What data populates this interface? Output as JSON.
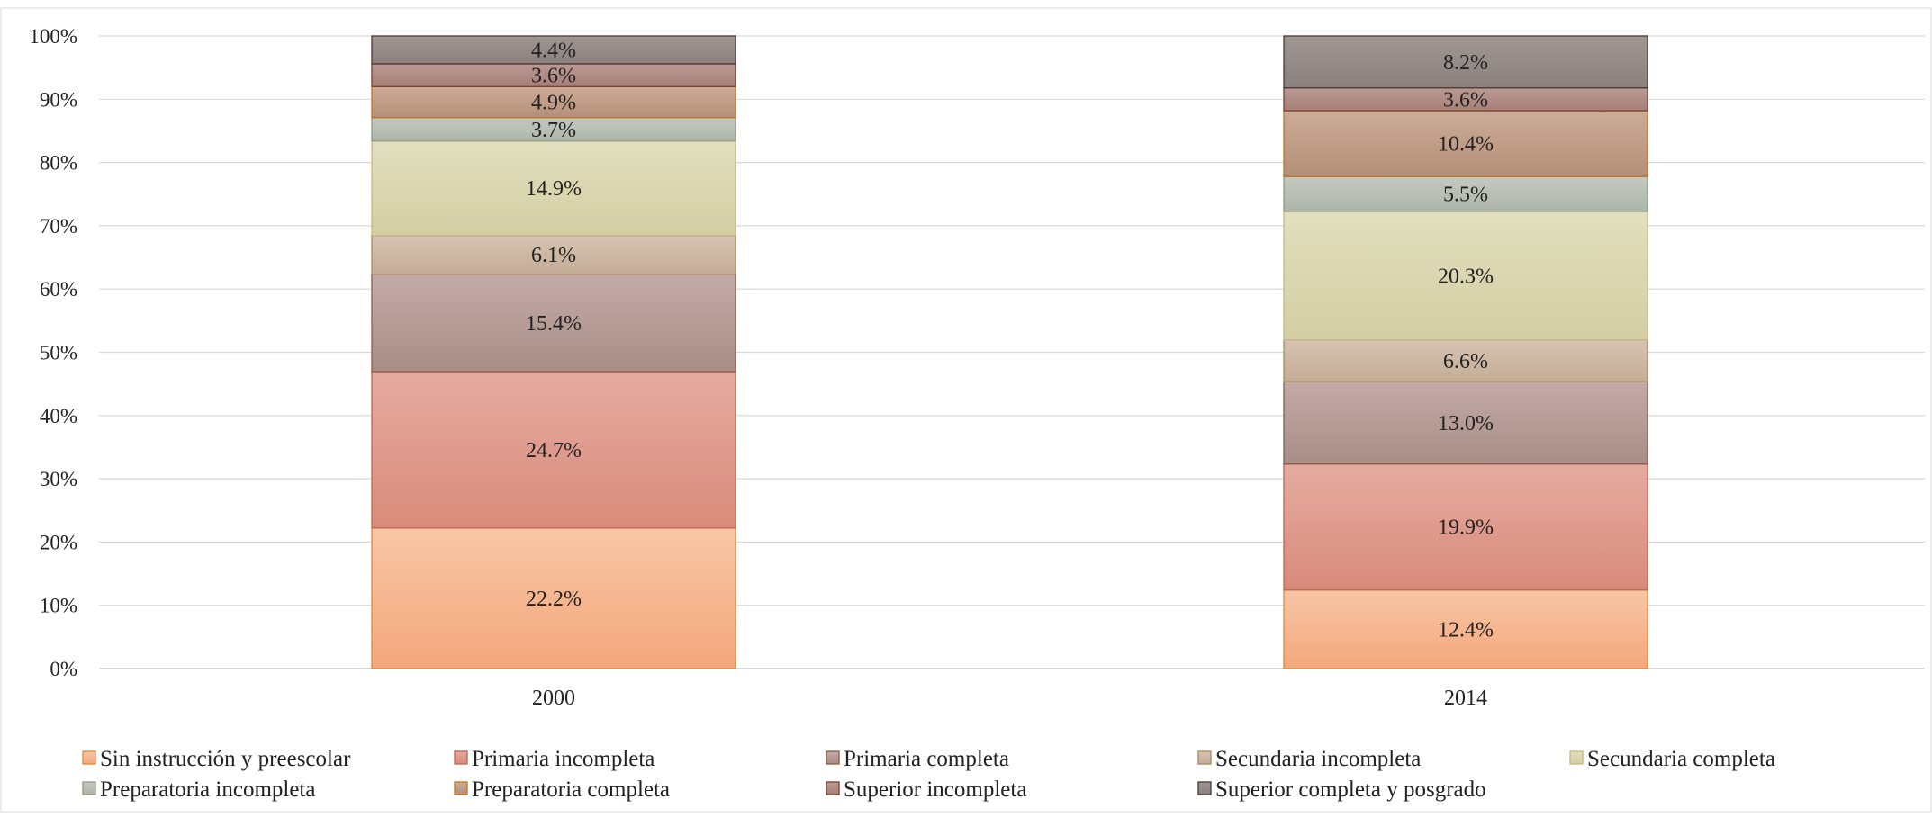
{
  "chart_data": {
    "type": "bar",
    "stacked": true,
    "percent_stacked": true,
    "categories": [
      "2000",
      "2014"
    ],
    "series": [
      {
        "name": "Sin instrucción y preescolar",
        "values": [
          22.2,
          12.4
        ],
        "labels": [
          "22.2%",
          "12.4%"
        ],
        "color_top": "#f8c6a6",
        "color_bottom": "#f4a77b",
        "stroke": "#e0893b"
      },
      {
        "name": "Primaria incompleta",
        "values": [
          24.7,
          19.9
        ],
        "labels": [
          "24.7%",
          "19.9%"
        ],
        "color_top": "#e5aba0",
        "color_bottom": "#d98b7b",
        "stroke": "#c0654f"
      },
      {
        "name": "Primaria completa",
        "values": [
          15.4,
          13.0
        ],
        "labels": [
          "15.4%",
          "13.0%"
        ],
        "color_top": "#c3aba8",
        "color_bottom": "#a88d87",
        "stroke": "#8c5a4b"
      },
      {
        "name": "Secundaria incompleta",
        "values": [
          6.1,
          6.6
        ],
        "labels": [
          "6.1%",
          "6.6%"
        ],
        "color_top": "#d6c3b2",
        "color_bottom": "#c4ad97",
        "stroke": "#a88a5d"
      },
      {
        "name": "Secundaria completa",
        "values": [
          14.9,
          20.3
        ],
        "labels": [
          "14.9%",
          "20.3%"
        ],
        "color_top": "#e2dfbf",
        "color_bottom": "#d3cea3",
        "stroke": "#c2b984"
      },
      {
        "name": "Preparatoria incompleta",
        "values": [
          3.7,
          5.5
        ],
        "labels": [
          "3.7%",
          "5.5%"
        ],
        "color_top": "#c4cac0",
        "color_bottom": "#adb4a8",
        "stroke": "#8e9a86"
      },
      {
        "name": "Preparatoria completa",
        "values": [
          4.9,
          10.4
        ],
        "labels": [
          "4.9%",
          "10.4%"
        ],
        "color_top": "#ccac98",
        "color_bottom": "#b58f78",
        "stroke": "#c0751c"
      },
      {
        "name": "Superior incompleta",
        "values": [
          3.6,
          3.6
        ],
        "labels": [
          "3.6%",
          "3.6%"
        ],
        "color_top": "#bb9a94",
        "color_bottom": "#a57f78",
        "stroke": "#7a3e2c"
      },
      {
        "name": "Superior completa y posgrado",
        "values": [
          4.4,
          8.2
        ],
        "labels": [
          "4.4%",
          "8.2%"
        ],
        "color_top": "#a09794",
        "color_bottom": "#8a817e",
        "stroke": "#4a3a35"
      }
    ],
    "yticks": [
      "0%",
      "10%",
      "20%",
      "30%",
      "40%",
      "50%",
      "60%",
      "70%",
      "80%",
      "90%",
      "100%"
    ],
    "ylim": [
      0,
      100
    ],
    "grid": true,
    "legend_position": "bottom",
    "title": "",
    "xlabel": "",
    "ylabel": ""
  },
  "colors": {
    "grid": "#d9d9d9",
    "axis": "#bfbfbf",
    "frame": "#d9d9d9"
  }
}
